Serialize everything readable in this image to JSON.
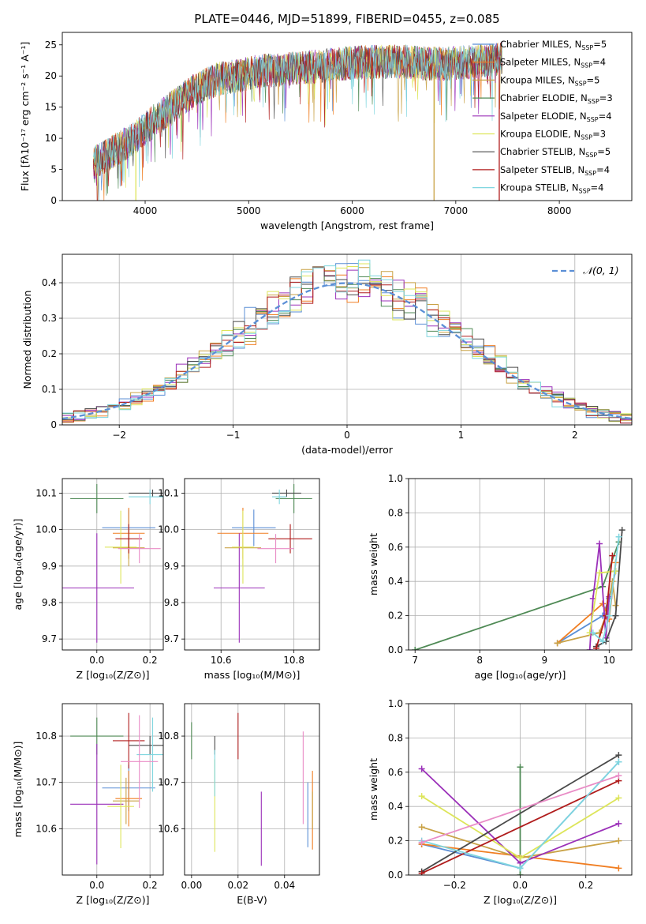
{
  "figure_title": "PLATE=0446, MJD=51899, FIBERID=0455, z=0.085",
  "palette": {
    "Chabrier MILES": "#5b8fd6",
    "Salpeter MILES": "#f07e22",
    "Kroupa MILES": "#c9a246",
    "Chabrier ELODIE": "#4f8a55",
    "Salpeter ELODIE": "#9b30b9",
    "Kroupa ELODIE": "#dde55a",
    "Chabrier STELIB": "#4a4a4a",
    "Salpeter STELIB": "#b01c1c",
    "Kroupa STELIB": "#7fd6df",
    "pink": "#e98cc6",
    "gaussian": "#5b8fd6"
  },
  "chart_data": [
    {
      "id": "spectrum",
      "type": "line",
      "xlabel": "wavelength [Angstrom, rest frame]",
      "ylabel": "Flux [fλ10⁻¹⁷ erg cm⁻² s⁻¹ A⁻¹]",
      "xlim": [
        3200,
        8700
      ],
      "ylim": [
        0,
        27
      ],
      "xticks": [
        4000,
        5000,
        6000,
        7000,
        8000
      ],
      "yticks": [
        0,
        5,
        10,
        15,
        20,
        25
      ],
      "legend_position": "right",
      "continuum": {
        "x": [
          3500,
          3700,
          3900,
          4100,
          4300,
          4500,
          4700,
          4900,
          5100,
          5300,
          5500,
          5700,
          5900,
          6100,
          6300,
          6500,
          6700,
          6900,
          7100,
          7300,
          7450
        ],
        "y": [
          6,
          8,
          10,
          13,
          15.5,
          18,
          19.5,
          20,
          20.8,
          21,
          21.3,
          21.6,
          22,
          22.2,
          22.3,
          22.3,
          22,
          22,
          22.2,
          22.5,
          22.8
        ]
      },
      "series": [
        {
          "name": "Chabrier MILES",
          "label_prefix": "Chabrier MILES, N",
          "sub": "SSP",
          "label_suffix": "=5"
        },
        {
          "name": "Salpeter MILES",
          "label_prefix": "Salpeter MILES, N",
          "sub": "SSP",
          "label_suffix": "=4"
        },
        {
          "name": "Kroupa MILES",
          "label_prefix": "Kroupa MILES, N",
          "sub": "SSP",
          "label_suffix": "=5"
        },
        {
          "name": "Chabrier ELODIE",
          "label_prefix": "Chabrier ELODIE, N",
          "sub": "SSP",
          "label_suffix": "=3"
        },
        {
          "name": "Salpeter ELODIE",
          "label_prefix": "Salpeter ELODIE, N",
          "sub": "SSP",
          "label_suffix": "=4"
        },
        {
          "name": "Kroupa ELODIE",
          "label_prefix": "Kroupa ELODIE, N",
          "sub": "SSP",
          "label_suffix": "=3"
        },
        {
          "name": "Chabrier STELIB",
          "label_prefix": "Chabrier STELIB, N",
          "sub": "SSP",
          "label_suffix": "=5"
        },
        {
          "name": "Salpeter STELIB",
          "label_prefix": "Salpeter STELIB, N",
          "sub": "SSP",
          "label_suffix": "=4"
        },
        {
          "name": "Kroupa STELIB",
          "label_prefix": "Kroupa STELIB, N",
          "sub": "SSP",
          "label_suffix": "=4"
        }
      ],
      "spikes": [
        {
          "x": 6790,
          "y0": 0,
          "y1": 22,
          "series": "Kroupa MILES"
        },
        {
          "x": 7420,
          "y0": 0,
          "y1": 23,
          "series": "Salpeter STELIB"
        },
        {
          "x": 3910,
          "y0": 0,
          "y1": 8,
          "series": "Kroupa ELODIE"
        }
      ]
    },
    {
      "id": "residuals",
      "type": "histogram",
      "xlabel": "(data-model)/error",
      "ylabel": "Normed distribution",
      "xlim": [
        -2.5,
        2.5
      ],
      "ylim": [
        0,
        0.48
      ],
      "xticks": [
        -2,
        -1,
        0,
        1,
        2
      ],
      "yticks": [
        0.0,
        0.1,
        0.2,
        0.3,
        0.4
      ],
      "grid": true,
      "bin_width": 0.1,
      "gaussian": {
        "label": "𝒩(0, 1)",
        "mean": 0,
        "sigma": 1
      },
      "legend_position": "top-right"
    },
    {
      "id": "age_vs_Z",
      "type": "scatter",
      "xlabel": "Z [log₁₀(Z/Z⊙)]",
      "ylabel": "age  [log₁₀(age/yr)]",
      "xlim": [
        -0.13,
        0.25
      ],
      "ylim": [
        9.67,
        10.14
      ],
      "xticks": [
        0.0,
        0.2
      ],
      "yticks": [
        9.7,
        9.8,
        9.9,
        10.0,
        10.1
      ],
      "grid": true,
      "points": [
        {
          "series": "Chabrier MILES",
          "x": 0.12,
          "y": 10.005,
          "xerr": 0.1,
          "yerr": 0.05
        },
        {
          "series": "Salpeter MILES",
          "x": 0.12,
          "y": 9.99,
          "xerr": 0.06,
          "yerr": 0.07
        },
        {
          "series": "Kroupa MILES",
          "x": 0.12,
          "y": 9.95,
          "xerr": 0.06,
          "yerr": 0.05
        },
        {
          "series": "Chabrier ELODIE",
          "x": 0.0,
          "y": 10.085,
          "xerr": 0.1,
          "yerr": 0.04
        },
        {
          "series": "Salpeter ELODIE",
          "x": 0.0,
          "y": 9.84,
          "xerr": 0.14,
          "yerr": 0.15
        },
        {
          "series": "Kroupa ELODIE",
          "x": 0.09,
          "y": 9.952,
          "xerr": 0.06,
          "yerr": 0.1
        },
        {
          "series": "Chabrier STELIB",
          "x": 0.21,
          "y": 10.1,
          "xerr": 0.09,
          "yerr": 0.01
        },
        {
          "series": "Salpeter STELIB",
          "x": 0.12,
          "y": 9.975,
          "xerr": 0.05,
          "yerr": 0.04
        },
        {
          "series": "Kroupa STELIB",
          "x": 0.2,
          "y": 10.09,
          "xerr": 0.08,
          "yerr": 0.02
        },
        {
          "series": "pink",
          "x": 0.16,
          "y": 9.948,
          "xerr": 0.08,
          "yerr": 0.04
        }
      ]
    },
    {
      "id": "age_vs_mass",
      "type": "scatter",
      "xlabel": "mass [log₁₀(M/M⊙)]",
      "ylabel": "",
      "xlim": [
        10.5,
        10.87
      ],
      "ylim": [
        9.67,
        10.14
      ],
      "xticks": [
        10.6,
        10.8
      ],
      "yticks": [
        9.7,
        9.8,
        9.9,
        10.0,
        10.1
      ],
      "grid": true,
      "points": [
        {
          "series": "Chabrier MILES",
          "x": 10.69,
          "y": 10.005,
          "xerr": 0.06,
          "yerr": 0.05
        },
        {
          "series": "Salpeter MILES",
          "x": 10.66,
          "y": 9.99,
          "xerr": 0.07,
          "yerr": 0.07
        },
        {
          "series": "Kroupa MILES",
          "x": 10.66,
          "y": 9.95,
          "xerr": 0.05,
          "yerr": 0.05
        },
        {
          "series": "Chabrier ELODIE",
          "x": 10.8,
          "y": 10.085,
          "xerr": 0.05,
          "yerr": 0.04
        },
        {
          "series": "Salpeter ELODIE",
          "x": 10.65,
          "y": 9.84,
          "xerr": 0.07,
          "yerr": 0.15
        },
        {
          "series": "Kroupa ELODIE",
          "x": 10.66,
          "y": 9.952,
          "xerr": 0.03,
          "yerr": 0.1
        },
        {
          "series": "Chabrier STELIB",
          "x": 10.78,
          "y": 10.1,
          "xerr": 0.04,
          "yerr": 0.01
        },
        {
          "series": "Salpeter STELIB",
          "x": 10.79,
          "y": 9.975,
          "xerr": 0.06,
          "yerr": 0.04
        },
        {
          "series": "Kroupa STELIB",
          "x": 10.76,
          "y": 10.09,
          "xerr": 0.02,
          "yerr": 0.02
        },
        {
          "series": "pink",
          "x": 10.75,
          "y": 9.948,
          "xerr": 0.05,
          "yerr": 0.04
        }
      ]
    },
    {
      "id": "weight_vs_age",
      "type": "line",
      "xlabel": "age  [log₁₀(age/yr)]",
      "ylabel": "mass weight",
      "xlim": [
        6.9,
        10.35
      ],
      "ylim": [
        0,
        1.0
      ],
      "xticks": [
        7,
        8,
        9,
        10
      ],
      "yticks": [
        0.0,
        0.2,
        0.4,
        0.6,
        0.8,
        1.0
      ],
      "grid": true,
      "series": [
        {
          "name": "Chabrier MILES",
          "x": [
            9.2,
            9.9,
            10.0,
            10.1
          ],
          "y": [
            0.04,
            0.2,
            0.3,
            0.46
          ]
        },
        {
          "name": "Salpeter MILES",
          "x": [
            9.2,
            9.9,
            10.0,
            10.1
          ],
          "y": [
            0.04,
            0.27,
            0.18,
            0.51
          ]
        },
        {
          "name": "Kroupa MILES",
          "x": [
            9.2,
            9.85,
            9.95,
            10.05,
            10.1
          ],
          "y": [
            0.04,
            0.1,
            0.2,
            0.4,
            0.26
          ]
        },
        {
          "name": "Chabrier ELODIE",
          "x": [
            7.0,
            9.9,
            10.15
          ],
          "y": [
            0.0,
            0.37,
            0.63
          ]
        },
        {
          "name": "Salpeter ELODIE",
          "x": [
            9.7,
            9.75,
            9.85,
            9.95,
            10.0
          ],
          "y": [
            0.0,
            0.3,
            0.62,
            0.07,
            0.31
          ]
        },
        {
          "name": "Kroupa ELODIE",
          "x": [
            9.7,
            9.85,
            10.1
          ],
          "y": [
            0.1,
            0.45,
            0.46
          ]
        },
        {
          "name": "Chabrier STELIB",
          "x": [
            9.8,
            9.95,
            10.1,
            10.2
          ],
          "y": [
            0.02,
            0.05,
            0.2,
            0.7
          ]
        },
        {
          "name": "Salpeter STELIB",
          "x": [
            9.8,
            9.95,
            10.05
          ],
          "y": [
            0.01,
            0.2,
            0.55
          ]
        },
        {
          "name": "Kroupa STELIB",
          "x": [
            9.75,
            9.9,
            10.0,
            10.15
          ],
          "y": [
            0.1,
            0.05,
            0.2,
            0.66
          ]
        }
      ]
    },
    {
      "id": "mass_vs_Z",
      "type": "scatter",
      "xlabel": "Z [log₁₀(Z/Z⊙)]",
      "ylabel": "mass [log₁₀(M/M⊙)]",
      "xlim": [
        -0.13,
        0.25
      ],
      "ylim": [
        10.5,
        10.87
      ],
      "xticks": [
        0.0,
        0.2
      ],
      "yticks": [
        10.6,
        10.7,
        10.8
      ],
      "grid": true,
      "points": [
        {
          "series": "Chabrier MILES",
          "x": 0.12,
          "y": 10.688,
          "xerr": 0.1,
          "yerr": 0.05
        },
        {
          "series": "Salpeter MILES",
          "x": 0.12,
          "y": 10.665,
          "xerr": 0.05,
          "yerr": 0.06
        },
        {
          "series": "Kroupa MILES",
          "x": 0.11,
          "y": 10.66,
          "xerr": 0.05,
          "yerr": 0.05
        },
        {
          "series": "Chabrier ELODIE",
          "x": 0.0,
          "y": 10.8,
          "xerr": 0.1,
          "yerr": 0.04
        },
        {
          "series": "Salpeter ELODIE",
          "x": 0.0,
          "y": 10.653,
          "xerr": 0.1,
          "yerr": 0.13
        },
        {
          "series": "Kroupa ELODIE",
          "x": 0.09,
          "y": 10.648,
          "xerr": 0.05,
          "yerr": 0.09
        },
        {
          "series": "Chabrier STELIB",
          "x": 0.2,
          "y": 10.78,
          "xerr": 0.08,
          "yerr": 0.02
        },
        {
          "series": "Salpeter STELIB",
          "x": 0.12,
          "y": 10.79,
          "xerr": 0.06,
          "yerr": 0.06
        },
        {
          "series": "Kroupa STELIB",
          "x": 0.21,
          "y": 10.76,
          "xerr": 0.06,
          "yerr": 0.08
        },
        {
          "series": "pink",
          "x": 0.16,
          "y": 10.745,
          "xerr": 0.07,
          "yerr": 0.1
        }
      ]
    },
    {
      "id": "mass_vs_EBV",
      "type": "scatter",
      "xlabel": "E(B-V)",
      "ylabel": "",
      "xlim": [
        -0.003,
        0.055
      ],
      "ylim": [
        10.5,
        10.87
      ],
      "xticks": [
        0.0,
        0.02,
        0.04
      ],
      "yticks": [
        10.6,
        10.7,
        10.8
      ],
      "grid": true,
      "points": [
        {
          "series": "Chabrier MILES",
          "x": 0.05,
          "y": 10.63,
          "yerr": 0.07
        },
        {
          "series": "Salpeter MILES",
          "x": 0.052,
          "y": 10.64,
          "yerr": 0.085
        },
        {
          "series": "Kroupa MILES",
          "x": 0.052,
          "y": 10.64,
          "yerr": 0.04
        },
        {
          "series": "Chabrier ELODIE",
          "x": 0.0,
          "y": 10.79,
          "yerr": 0.04
        },
        {
          "series": "Salpeter ELODIE",
          "x": 0.03,
          "y": 10.6,
          "yerr": 0.08
        },
        {
          "series": "Kroupa ELODIE",
          "x": 0.01,
          "y": 10.65,
          "yerr": 0.1
        },
        {
          "series": "Chabrier STELIB",
          "x": 0.01,
          "y": 10.78,
          "yerr": 0.02
        },
        {
          "series": "Salpeter STELIB",
          "x": 0.02,
          "y": 10.8,
          "yerr": 0.05
        },
        {
          "series": "Kroupa STELIB",
          "x": 0.01,
          "y": 10.72,
          "yerr": 0.05
        },
        {
          "series": "pink",
          "x": 0.048,
          "y": 10.71,
          "yerr": 0.1
        }
      ]
    },
    {
      "id": "weight_vs_Z",
      "type": "line",
      "xlabel": "Z [log₁₀(Z/Z⊙)]",
      "ylabel": "mass weight",
      "xlim": [
        -0.34,
        0.34
      ],
      "ylim": [
        0,
        1.0
      ],
      "xticks": [
        -0.2,
        0.0,
        0.2
      ],
      "yticks": [
        0.0,
        0.2,
        0.4,
        0.6,
        0.8,
        1.0
      ],
      "grid": true,
      "series": [
        {
          "name": "Chabrier MILES",
          "x": [
            -0.3,
            0.0,
            0.3
          ],
          "y": [
            0.18,
            0.04,
            0.66
          ]
        },
        {
          "name": "Salpeter MILES",
          "x": [
            -0.3,
            0.3
          ],
          "y": [
            0.18,
            0.04
          ]
        },
        {
          "name": "Kroupa MILES",
          "x": [
            -0.3,
            0.0,
            0.3
          ],
          "y": [
            0.28,
            0.1,
            0.2
          ]
        },
        {
          "name": "Chabrier ELODIE",
          "x": [
            0.0,
            0.0
          ],
          "y": [
            0.0,
            0.63
          ]
        },
        {
          "name": "Salpeter ELODIE",
          "x": [
            -0.3,
            0.0,
            0.3
          ],
          "y": [
            0.62,
            0.07,
            0.3
          ]
        },
        {
          "name": "Kroupa ELODIE",
          "x": [
            -0.3,
            0.0,
            0.3
          ],
          "y": [
            0.46,
            0.1,
            0.45
          ]
        },
        {
          "name": "Chabrier STELIB",
          "x": [
            -0.3,
            0.3
          ],
          "y": [
            0.02,
            0.7
          ]
        },
        {
          "name": "Salpeter STELIB",
          "x": [
            -0.3,
            0.3
          ],
          "y": [
            0.01,
            0.55
          ]
        },
        {
          "name": "Kroupa STELIB",
          "x": [
            -0.3,
            0.0,
            0.3
          ],
          "y": [
            0.2,
            0.04,
            0.66
          ]
        },
        {
          "name": "pink",
          "x": [
            -0.3,
            0.3
          ],
          "y": [
            0.19,
            0.58
          ]
        }
      ]
    }
  ]
}
